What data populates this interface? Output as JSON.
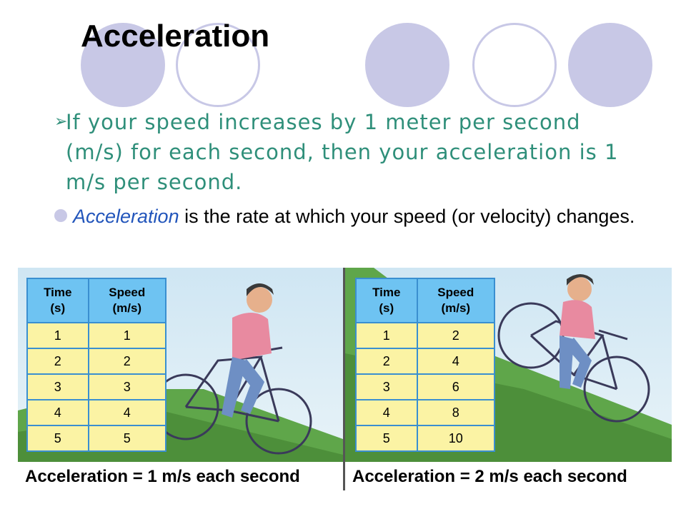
{
  "slide": {
    "title": "Acceleration",
    "bullet1_arrow": "➢",
    "bullet1": "If your speed increases by 1 meter per second (m/s) for each second, then your acceleration is 1 m/s per second.",
    "bullet2_term": "Acceleration",
    "bullet2_rest": " is the rate at which your speed (or velocity) changes."
  },
  "figure": {
    "left_table": {
      "headers": [
        "Time\n(s)",
        "Speed\n(m/s)"
      ],
      "rows": [
        [
          "1",
          "1"
        ],
        [
          "2",
          "2"
        ],
        [
          "3",
          "3"
        ],
        [
          "4",
          "4"
        ],
        [
          "5",
          "5"
        ]
      ]
    },
    "right_table": {
      "headers": [
        "Time\n(s)",
        "Speed\n(m/s)"
      ],
      "rows": [
        [
          "1",
          "2"
        ],
        [
          "2",
          "4"
        ],
        [
          "3",
          "6"
        ],
        [
          "4",
          "8"
        ],
        [
          "5",
          "10"
        ]
      ]
    },
    "left_caption": "Acceleration = 1 m/s each second",
    "right_caption": "Acceleration = 2 m/s each second"
  },
  "colors": {
    "accent_teal": "#2f8f7a",
    "term_blue": "#2255bb",
    "decor_lavender": "#c8c8e6",
    "table_header": "#6ec3f2",
    "table_cell": "#fbf3a4"
  }
}
